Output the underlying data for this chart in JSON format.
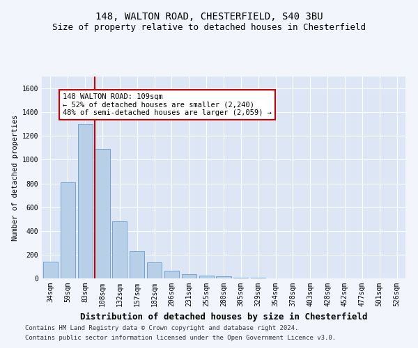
{
  "title1": "148, WALTON ROAD, CHESTERFIELD, S40 3BU",
  "title2": "Size of property relative to detached houses in Chesterfield",
  "xlabel": "Distribution of detached houses by size in Chesterfield",
  "ylabel": "Number of detached properties",
  "categories": [
    "34sqm",
    "59sqm",
    "83sqm",
    "108sqm",
    "132sqm",
    "157sqm",
    "182sqm",
    "206sqm",
    "231sqm",
    "255sqm",
    "280sqm",
    "305sqm",
    "329sqm",
    "354sqm",
    "378sqm",
    "403sqm",
    "428sqm",
    "452sqm",
    "477sqm",
    "501sqm",
    "526sqm"
  ],
  "values": [
    140,
    810,
    1300,
    1090,
    480,
    230,
    135,
    65,
    35,
    22,
    15,
    8,
    3,
    1,
    0,
    1,
    0,
    0,
    0,
    1,
    0
  ],
  "bar_color": "#b8cfe8",
  "bar_edge_color": "#6699cc",
  "highlight_bar_index": 3,
  "highlight_line_color": "#cc0000",
  "annotation_text": "148 WALTON ROAD: 109sqm\n← 52% of detached houses are smaller (2,240)\n48% of semi-detached houses are larger (2,059) →",
  "annotation_box_color": "#cc0000",
  "ylim": [
    0,
    1700
  ],
  "yticks": [
    0,
    200,
    400,
    600,
    800,
    1000,
    1200,
    1400,
    1600
  ],
  "footer_line1": "Contains HM Land Registry data © Crown copyright and database right 2024.",
  "footer_line2": "Contains public sector information licensed under the Open Government Licence v3.0.",
  "bg_color": "#f2f5fb",
  "plot_bg_color": "#dce6f5",
  "grid_color": "#ffffff",
  "title1_fontsize": 10,
  "title2_fontsize": 9,
  "xlabel_fontsize": 9,
  "ylabel_fontsize": 7.5,
  "tick_fontsize": 7,
  "annotation_fontsize": 7.5,
  "footer_fontsize": 6.5
}
